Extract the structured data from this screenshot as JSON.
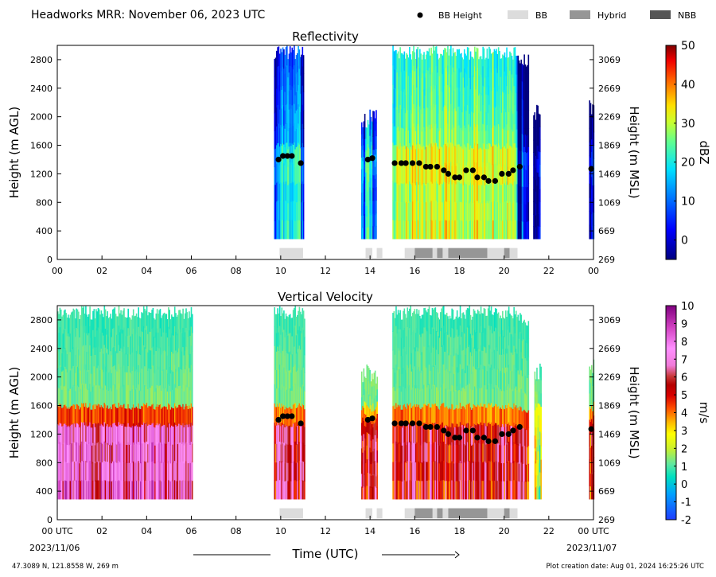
{
  "header": {
    "title": "Headworks MRR:  November 06, 2023 UTC",
    "legend": [
      {
        "label": "BB Height",
        "kind": "dot",
        "color": "#000000"
      },
      {
        "label": "BB",
        "kind": "box",
        "color": "#dcdcdc"
      },
      {
        "label": "Hybrid",
        "kind": "box",
        "color": "#969696"
      },
      {
        "label": "NBB",
        "kind": "box",
        "color": "#555555"
      }
    ]
  },
  "footer": {
    "coords": "47.3089 N, 121.8558 W, 269 m",
    "created": "Plot creation date: Aug 01, 2024 16:25:26 UTC",
    "date_left": "2023/11/06",
    "date_right": "2023/11/07",
    "xlabel": "Time (UTC)"
  },
  "chart_data": [
    {
      "type": "heatmap",
      "title": "Reflectivity",
      "ylabel": "Height (m AGL)",
      "ylabel_right": "Height (m MSL)",
      "ylim": [
        0,
        3000
      ],
      "xlim": [
        0,
        24
      ],
      "yticks_left": [
        "0",
        "400",
        "800",
        "1200",
        "1600",
        "2000",
        "2400",
        "2800"
      ],
      "yticks_right": [
        "269",
        "669",
        "1069",
        "1469",
        "1869",
        "2269",
        "2669",
        "3069"
      ],
      "xticks": [
        "00",
        "02",
        "04",
        "06",
        "08",
        "10",
        "12",
        "14",
        "16",
        "18",
        "20",
        "22",
        "00"
      ],
      "colorbar": {
        "label": "dBZ",
        "min": -5,
        "max": 50,
        "ticks": [
          "0",
          "10",
          "20",
          "30",
          "40",
          "50"
        ],
        "tick_values": [
          0,
          10,
          20,
          30,
          40,
          50
        ]
      },
      "echo_periods": [
        {
          "start": 9.7,
          "end": 11.0,
          "top": 3000,
          "core_dbz": 12
        },
        {
          "start": 13.6,
          "end": 14.25,
          "top": 2100,
          "core_dbz": 14
        },
        {
          "start": 15.0,
          "end": 20.6,
          "top": 3000,
          "core_dbz": 24
        },
        {
          "start": 20.6,
          "end": 21.1,
          "top": 2900,
          "core_dbz": 4
        },
        {
          "start": 21.3,
          "end": 21.6,
          "top": 2200,
          "core_dbz": 4
        },
        {
          "start": 23.8,
          "end": 24.0,
          "top": 2300,
          "core_dbz": 10
        }
      ],
      "bb_height": {
        "x": [
          9.9,
          10.1,
          10.3,
          10.5,
          10.9,
          13.9,
          14.1,
          15.1,
          15.4,
          15.6,
          15.9,
          16.2,
          16.5,
          16.7,
          17.0,
          17.3,
          17.5,
          17.8,
          18.0,
          18.3,
          18.6,
          18.8,
          19.1,
          19.3,
          19.6,
          19.9,
          20.2,
          20.4,
          20.7,
          23.9
        ],
        "y": [
          1400,
          1450,
          1450,
          1450,
          1350,
          1400,
          1420,
          1350,
          1350,
          1350,
          1350,
          1350,
          1300,
          1300,
          1300,
          1250,
          1200,
          1150,
          1150,
          1250,
          1250,
          1150,
          1150,
          1100,
          1100,
          1200,
          1200,
          1250,
          1300,
          1270
        ]
      },
      "bb_type_segments": [
        {
          "start": 9.95,
          "end": 11.0,
          "type": "BB"
        },
        {
          "start": 13.8,
          "end": 14.1,
          "type": "BB"
        },
        {
          "start": 14.3,
          "end": 14.55,
          "type": "BB"
        },
        {
          "start": 15.55,
          "end": 16.0,
          "type": "BB"
        },
        {
          "start": 16.0,
          "end": 16.8,
          "type": "Hybrid"
        },
        {
          "start": 16.8,
          "end": 17.0,
          "type": "BB"
        },
        {
          "start": 17.0,
          "end": 17.25,
          "type": "Hybrid"
        },
        {
          "start": 17.25,
          "end": 17.5,
          "type": "BB"
        },
        {
          "start": 17.5,
          "end": 19.25,
          "type": "Hybrid"
        },
        {
          "start": 19.25,
          "end": 20.0,
          "type": "BB"
        },
        {
          "start": 20.0,
          "end": 20.25,
          "type": "Hybrid"
        },
        {
          "start": 20.25,
          "end": 20.6,
          "type": "BB"
        }
      ]
    },
    {
      "type": "heatmap",
      "title": "Vertical Velocity",
      "ylabel": "Height (m AGL)",
      "ylabel_right": "Height (m MSL)",
      "ylim": [
        0,
        3000
      ],
      "xlim": [
        0,
        24
      ],
      "yticks_left": [
        "0",
        "400",
        "800",
        "1200",
        "1600",
        "2000",
        "2400",
        "2800"
      ],
      "yticks_right": [
        "269",
        "669",
        "1069",
        "1469",
        "1869",
        "2269",
        "2669",
        "3069"
      ],
      "xticks": [
        "00 UTC",
        "02",
        "04",
        "06",
        "08",
        "10",
        "12",
        "14",
        "16",
        "18",
        "20",
        "22",
        "00 UTC"
      ],
      "colorbar": {
        "label": "m/s",
        "min": -2,
        "max": 10,
        "ticks": [
          "-2",
          "-1",
          "0",
          "1",
          "2",
          "3",
          "4",
          "5",
          "6",
          "7",
          "8",
          "9",
          "10"
        ],
        "tick_values": [
          -2,
          -1,
          0,
          1,
          2,
          3,
          4,
          5,
          6,
          7,
          8,
          9,
          10
        ]
      },
      "echo_periods": [
        {
          "start": 0.0,
          "end": 6.05,
          "top": 3000,
          "low_ms": 7.2
        },
        {
          "start": 9.7,
          "end": 11.05,
          "top": 3000,
          "low_ms": 5.8
        },
        {
          "start": 13.6,
          "end": 14.3,
          "top": 2200,
          "low_ms": 5.8
        },
        {
          "start": 15.0,
          "end": 20.6,
          "top": 3000,
          "low_ms": 5.8
        },
        {
          "start": 20.6,
          "end": 21.1,
          "top": 2900,
          "low_ms": 5.5
        },
        {
          "start": 21.35,
          "end": 21.65,
          "top": 2200,
          "low_ms": 2.5
        },
        {
          "start": 23.8,
          "end": 24.0,
          "top": 2300,
          "low_ms": 5.5
        }
      ],
      "bb_height": {
        "x": [
          9.9,
          10.1,
          10.3,
          10.5,
          10.9,
          13.9,
          14.1,
          15.1,
          15.4,
          15.6,
          15.9,
          16.2,
          16.5,
          16.7,
          17.0,
          17.3,
          17.5,
          17.8,
          18.0,
          18.3,
          18.6,
          18.8,
          19.1,
          19.3,
          19.6,
          19.9,
          20.2,
          20.4,
          20.7,
          23.9
        ],
        "y": [
          1400,
          1450,
          1450,
          1450,
          1350,
          1400,
          1420,
          1350,
          1350,
          1350,
          1350,
          1350,
          1300,
          1300,
          1300,
          1250,
          1200,
          1150,
          1150,
          1250,
          1250,
          1150,
          1150,
          1100,
          1100,
          1200,
          1200,
          1250,
          1300,
          1270
        ]
      },
      "bb_type_segments": [
        {
          "start": 9.95,
          "end": 11.0,
          "type": "BB"
        },
        {
          "start": 13.8,
          "end": 14.1,
          "type": "BB"
        },
        {
          "start": 14.3,
          "end": 14.55,
          "type": "BB"
        },
        {
          "start": 15.55,
          "end": 16.0,
          "type": "BB"
        },
        {
          "start": 16.0,
          "end": 16.8,
          "type": "Hybrid"
        },
        {
          "start": 16.8,
          "end": 17.0,
          "type": "BB"
        },
        {
          "start": 17.0,
          "end": 17.25,
          "type": "Hybrid"
        },
        {
          "start": 17.25,
          "end": 17.5,
          "type": "BB"
        },
        {
          "start": 17.5,
          "end": 19.25,
          "type": "Hybrid"
        },
        {
          "start": 19.25,
          "end": 20.0,
          "type": "BB"
        },
        {
          "start": 20.0,
          "end": 20.25,
          "type": "Hybrid"
        },
        {
          "start": 20.25,
          "end": 20.6,
          "type": "BB"
        }
      ]
    }
  ]
}
